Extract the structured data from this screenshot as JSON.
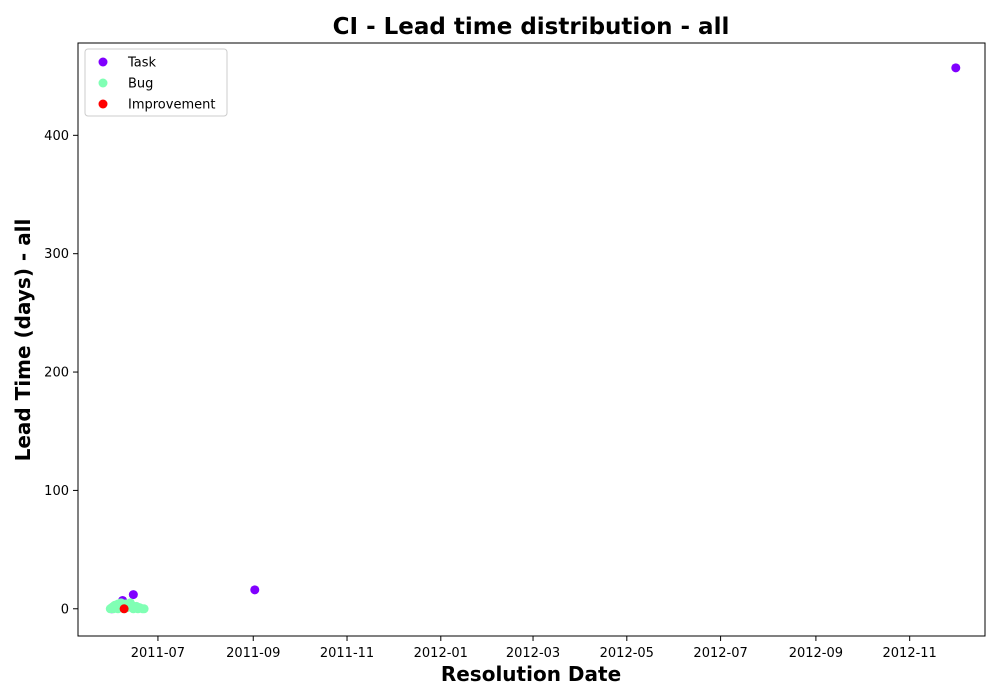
{
  "chart_data": {
    "type": "scatter",
    "title": "CI - Lead time distribution - all",
    "xlabel": "Resolution Date",
    "ylabel": "Lead Time (days) - all",
    "x_scale": "date",
    "xlim": [
      "2011-05-10",
      "2012-12-20"
    ],
    "ylim": [
      -23,
      478
    ],
    "x_ticks": [
      "2011-07",
      "2011-09",
      "2011-11",
      "2012-01",
      "2012-03",
      "2012-05",
      "2012-07",
      "2012-09",
      "2012-11"
    ],
    "y_ticks": [
      0,
      100,
      200,
      300,
      400
    ],
    "grid": false,
    "legend_position": "top-left",
    "series": [
      {
        "name": "Task",
        "color": "#8000ff",
        "points": [
          {
            "x": "2011-06-01",
            "y": 0
          },
          {
            "x": "2011-06-03",
            "y": 1
          },
          {
            "x": "2011-06-08",
            "y": 7
          },
          {
            "x": "2011-06-15",
            "y": 12
          },
          {
            "x": "2011-06-10",
            "y": 2
          },
          {
            "x": "2011-09-02",
            "y": 16
          },
          {
            "x": "2012-12-01",
            "y": 457
          }
        ]
      },
      {
        "name": "Bug",
        "color": "#80ffb4",
        "points": [
          {
            "x": "2011-05-31",
            "y": 0
          },
          {
            "x": "2011-06-01",
            "y": 1
          },
          {
            "x": "2011-06-02",
            "y": 2
          },
          {
            "x": "2011-06-02",
            "y": 0
          },
          {
            "x": "2011-06-03",
            "y": 3
          },
          {
            "x": "2011-06-04",
            "y": 1
          },
          {
            "x": "2011-06-05",
            "y": 4
          },
          {
            "x": "2011-06-05",
            "y": 0
          },
          {
            "x": "2011-06-06",
            "y": 2
          },
          {
            "x": "2011-06-07",
            "y": 5
          },
          {
            "x": "2011-06-07",
            "y": 1
          },
          {
            "x": "2011-06-08",
            "y": 3
          },
          {
            "x": "2011-06-09",
            "y": 0
          },
          {
            "x": "2011-06-10",
            "y": 4
          },
          {
            "x": "2011-06-11",
            "y": 1
          },
          {
            "x": "2011-06-12",
            "y": 2
          },
          {
            "x": "2011-06-13",
            "y": 5
          },
          {
            "x": "2011-06-14",
            "y": 3
          },
          {
            "x": "2011-06-15",
            "y": 0
          },
          {
            "x": "2011-06-16",
            "y": 1
          },
          {
            "x": "2011-06-17",
            "y": 2
          },
          {
            "x": "2011-06-18",
            "y": 0
          },
          {
            "x": "2011-06-19",
            "y": 1
          },
          {
            "x": "2011-06-21",
            "y": 0
          },
          {
            "x": "2011-06-22",
            "y": 0
          }
        ]
      },
      {
        "name": "Improvement",
        "color": "#ff0000",
        "points": [
          {
            "x": "2011-06-09",
            "y": 0
          }
        ]
      }
    ]
  }
}
